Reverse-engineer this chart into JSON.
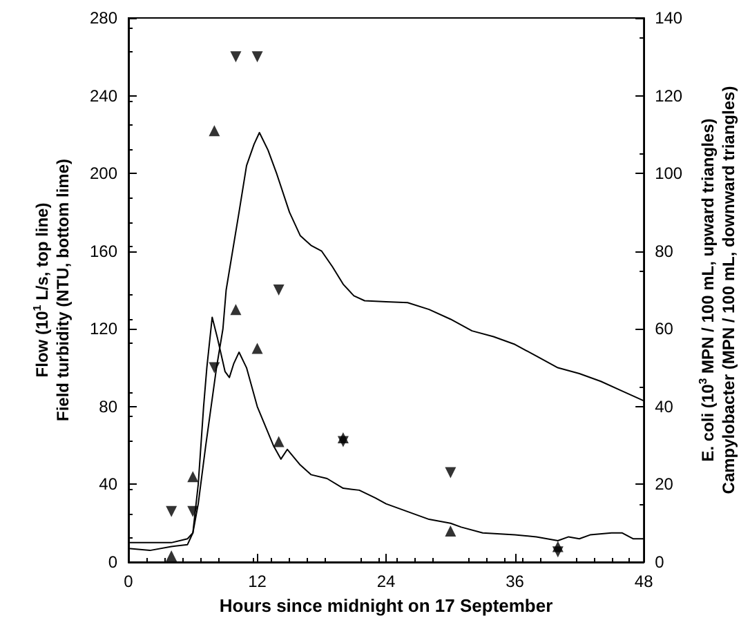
{
  "chart_data": {
    "type": "line",
    "xlabel": "Hours since midnight on 17 September",
    "ylabel": "Flow (10$^{1}$ L/s, top line)\nField turbidity (NTU, bottom lime)",
    "y2label": "E. coli (10$^{3}$ MPN / 100 mL, upward triangles)\nCampylobacter (MPN / 100 mL, downward triangles)",
    "xlim": [
      0,
      48
    ],
    "xticks": [
      0,
      12,
      24,
      36,
      48
    ],
    "ylim": [
      0,
      280
    ],
    "yticks": [
      0,
      40,
      80,
      120,
      160,
      200,
      240,
      280
    ],
    "y2lim": [
      0,
      140
    ],
    "y2ticks": [
      0,
      20,
      40,
      60,
      80,
      100,
      120,
      140
    ],
    "series": [
      {
        "color": "#000000",
        "marker": "none",
        "x": [
          0,
          4,
          5.5,
          6,
          6.5,
          7.2,
          8.2,
          8.8,
          9.1,
          10.3,
          11,
          11.7,
          12.2,
          13,
          13.8,
          15,
          16,
          17,
          18,
          19,
          20,
          21,
          22,
          24,
          26,
          28,
          30,
          32,
          34,
          36,
          38,
          40,
          42,
          44,
          46,
          48
        ],
        "values": [
          10,
          10,
          12,
          15,
          30,
          60,
          100,
          120,
          140,
          180,
          204,
          215,
          221,
          212,
          200,
          180,
          168,
          163,
          160,
          152,
          143,
          137,
          134.5,
          134,
          133.5,
          130,
          125,
          119,
          116,
          112,
          106,
          100,
          97,
          93,
          88,
          83
        ]
      },
      {
        "color": "#000000",
        "marker": "none",
        "x": [
          0,
          2,
          4,
          5.5,
          6,
          6.5,
          7,
          7.3,
          7.8,
          8.3,
          9,
          9.4,
          9.8,
          10.3,
          11,
          12,
          13.5,
          14.2,
          14.8,
          16,
          17,
          18.5,
          20,
          21.5,
          23,
          24,
          26,
          28,
          30,
          31,
          33,
          36,
          38,
          40,
          41,
          42,
          43,
          45,
          46,
          47,
          48
        ],
        "values": [
          7,
          6,
          8,
          9,
          15,
          40,
          80,
          100,
          126,
          115,
          98,
          95,
          102,
          108,
          100,
          80,
          60,
          53,
          58,
          50,
          45,
          43,
          38,
          37,
          33,
          30,
          26,
          22,
          20,
          18,
          15,
          14,
          13,
          11,
          13,
          12,
          14,
          15,
          15,
          12,
          12
        ]
      },
      {
        "type": "scatter",
        "color": "#000000",
        "marker": "triangle",
        "axis": "y2",
        "x": [
          4,
          6,
          8,
          10,
          12,
          14,
          20,
          30,
          40
        ],
        "values": [
          1.6,
          22,
          111,
          65,
          55,
          31,
          32,
          8,
          4
        ]
      },
      {
        "type": "scatter",
        "color": "#000000",
        "marker": "triangle-down",
        "axis": "y2",
        "x": [
          4,
          6,
          8,
          10,
          12,
          14,
          20,
          30,
          40
        ],
        "values": [
          13,
          13,
          50,
          130,
          130,
          70,
          31,
          23,
          2.6
        ]
      }
    ]
  }
}
